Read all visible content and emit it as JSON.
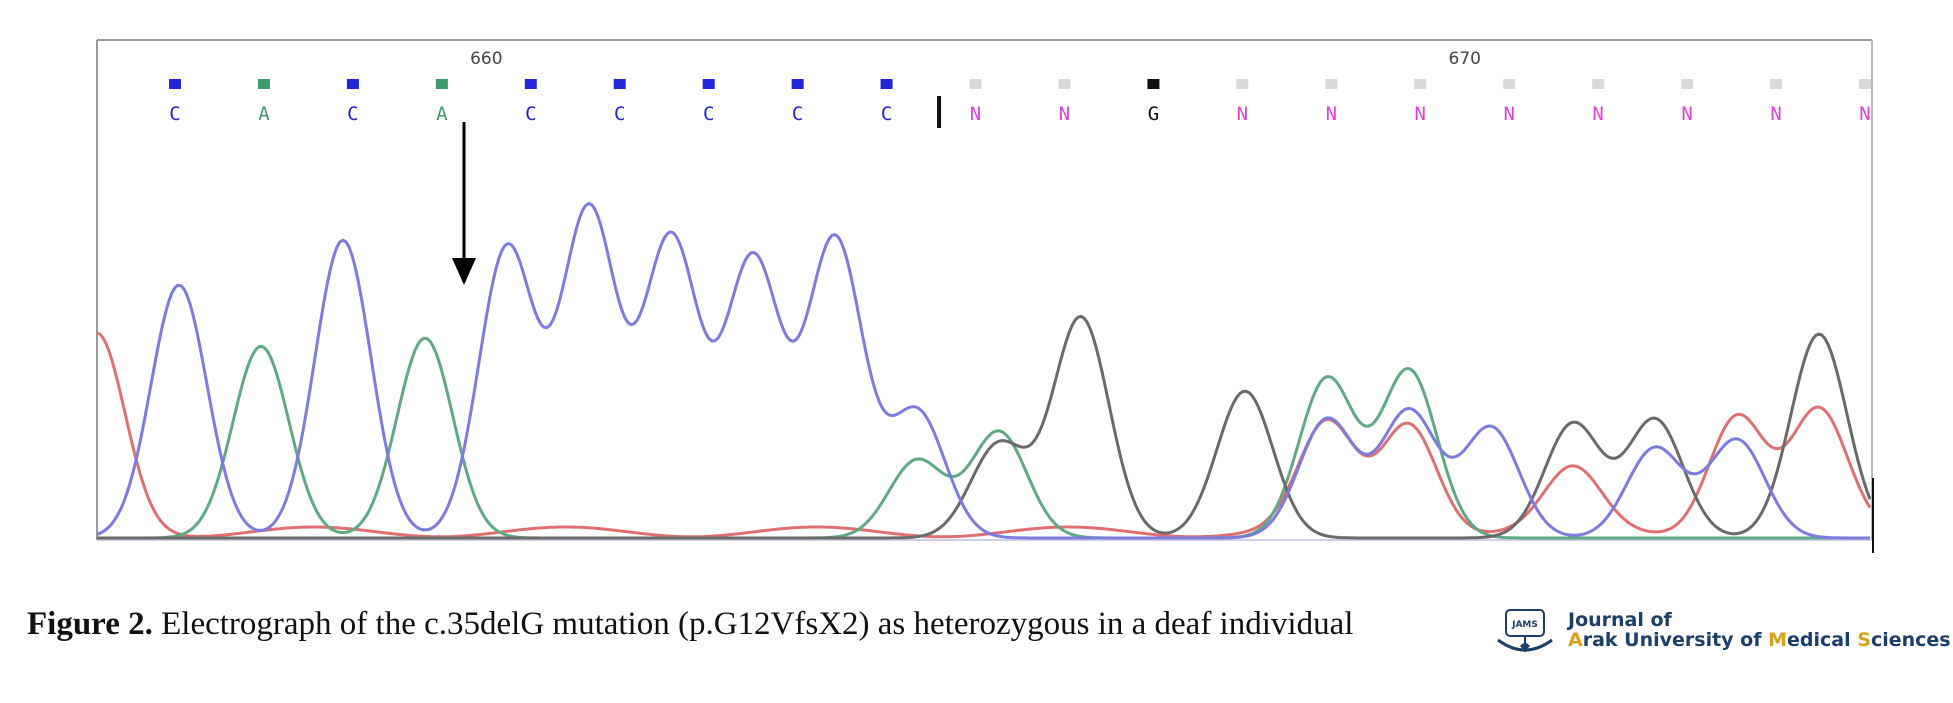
{
  "chart_data": {
    "type": "line",
    "subtype": "sanger-sequencing-electropherogram",
    "position_labels": [
      {
        "label": "660",
        "after_base_index": 3
      },
      {
        "label": "670",
        "after_base_index": 14
      }
    ],
    "bases": [
      "C",
      "A",
      "C",
      "A",
      "C",
      "C",
      "C",
      "C",
      "C",
      "N",
      "N",
      "G",
      "N",
      "N",
      "N",
      "N",
      "N",
      "N",
      "N",
      "N"
    ],
    "base_colors": {
      "A": "#3f9a6b",
      "C": "#2424d8",
      "G": "#111111",
      "T": "#d43a3a",
      "N": "#e040e0"
    },
    "trace_colors": {
      "A": "#5faa82",
      "C": "#7b7be0",
      "G": "#6a6a6a",
      "T": "#e07070"
    },
    "ylim": [
      0,
      100
    ],
    "peaks": {
      "C": [
        [
          1,
          62
        ],
        [
          3,
          73
        ],
        [
          5,
          71
        ],
        [
          6,
          80
        ],
        [
          7,
          73
        ],
        [
          8,
          68
        ],
        [
          9,
          73
        ],
        [
          10,
          31
        ],
        [
          15,
          29
        ],
        [
          16,
          31
        ],
        [
          17,
          27
        ],
        [
          19,
          22
        ],
        [
          20,
          24
        ]
      ],
      "A": [
        [
          2,
          47
        ],
        [
          4,
          49
        ],
        [
          10,
          19
        ],
        [
          11,
          26
        ],
        [
          15,
          39
        ],
        [
          16,
          41
        ]
      ],
      "G": [
        [
          11,
          23
        ],
        [
          12,
          54
        ],
        [
          14,
          36
        ],
        [
          18,
          28
        ],
        [
          19,
          29
        ],
        [
          21,
          50
        ]
      ],
      "T": [
        [
          0,
          48
        ],
        [
          15,
          26
        ],
        [
          16,
          27
        ],
        [
          18,
          15
        ],
        [
          20,
          29
        ],
        [
          21,
          29
        ]
      ]
    },
    "annotation": {
      "type": "arrow",
      "points_to": "between base 4 and 5",
      "direction": "down"
    },
    "grid": false,
    "legend": "none"
  },
  "caption": {
    "label": "Figure 2.",
    "text": " Electrograph of the c.35delG mutation (p.G12VfsX2) as heterozygous in a deaf individual"
  },
  "logo": {
    "line1": "Journal of",
    "line2_parts": [
      {
        "text": "A",
        "accent": true
      },
      {
        "text": "rak University of ",
        "accent": false
      },
      {
        "text": "M",
        "accent": true
      },
      {
        "text": "edical ",
        "accent": false
      },
      {
        "text": "S",
        "accent": true
      },
      {
        "text": "ciences",
        "accent": false
      }
    ],
    "badge_text": "JAMS"
  }
}
